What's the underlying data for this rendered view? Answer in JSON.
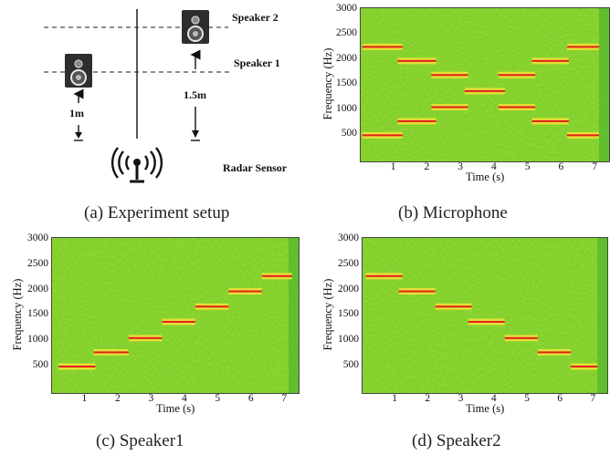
{
  "captions": {
    "a": "(a)  Experiment setup",
    "b": "(b)  Microphone",
    "c": "(c)  Speaker1",
    "d": "(d)  Speaker2"
  },
  "setup": {
    "speaker2_label": "Speaker 2",
    "speaker1_label": "Speaker 1",
    "dist1": "1m",
    "dist2": "1.5m",
    "radar_label": "Radar Sensor"
  },
  "axes": {
    "xlabel": "Time (s)",
    "ylabel": "Frequency (Hz)",
    "xticks": [
      "1",
      "2",
      "3",
      "4",
      "5",
      "6",
      "7"
    ],
    "yticks": [
      "500",
      "1000",
      "1500",
      "2000",
      "2500",
      "3000"
    ]
  },
  "colors": {
    "spectrogram_bg": "#7ccd2a",
    "tone": "#e0201a",
    "tone_glow": "#f6e23a"
  },
  "chart_data": [
    {
      "type": "heatmap",
      "panel": "Microphone",
      "xlabel": "Time (s)",
      "ylabel": "Frequency (Hz)",
      "xlim": [
        0,
        7.4
      ],
      "ylim": [
        0,
        3050
      ],
      "tones": [
        {
          "t0": 0.05,
          "t1": 1.25,
          "f": 520
        },
        {
          "t0": 0.05,
          "t1": 1.25,
          "f": 2280
        },
        {
          "t0": 1.1,
          "t1": 2.25,
          "f": 800
        },
        {
          "t0": 1.1,
          "t1": 2.25,
          "f": 2000
        },
        {
          "t0": 2.1,
          "t1": 3.2,
          "f": 1080
        },
        {
          "t0": 2.1,
          "t1": 3.2,
          "f": 1720
        },
        {
          "t0": 3.1,
          "t1": 4.3,
          "f": 1400
        },
        {
          "t0": 4.1,
          "t1": 5.2,
          "f": 1080
        },
        {
          "t0": 4.1,
          "t1": 5.2,
          "f": 1720
        },
        {
          "t0": 5.1,
          "t1": 6.2,
          "f": 800
        },
        {
          "t0": 5.1,
          "t1": 6.2,
          "f": 2000
        },
        {
          "t0": 6.15,
          "t1": 7.1,
          "f": 520
        },
        {
          "t0": 6.15,
          "t1": 7.1,
          "f": 2280
        }
      ]
    },
    {
      "type": "heatmap",
      "panel": "Speaker1",
      "xlabel": "Time (s)",
      "ylabel": "Frequency (Hz)",
      "xlim": [
        0,
        7.4
      ],
      "ylim": [
        0,
        3050
      ],
      "tones": [
        {
          "t0": 0.2,
          "t1": 1.3,
          "f": 520
        },
        {
          "t0": 1.25,
          "t1": 2.3,
          "f": 800
        },
        {
          "t0": 2.3,
          "t1": 3.3,
          "f": 1080
        },
        {
          "t0": 3.3,
          "t1": 4.3,
          "f": 1400
        },
        {
          "t0": 4.3,
          "t1": 5.3,
          "f": 1700
        },
        {
          "t0": 5.3,
          "t1": 6.3,
          "f": 2000
        },
        {
          "t0": 6.3,
          "t1": 7.2,
          "f": 2300
        }
      ]
    },
    {
      "type": "heatmap",
      "panel": "Speaker2",
      "xlabel": "Time (s)",
      "ylabel": "Frequency (Hz)",
      "xlim": [
        0,
        7.4
      ],
      "ylim": [
        0,
        3050
      ],
      "tones": [
        {
          "t0": 0.1,
          "t1": 1.2,
          "f": 2300
        },
        {
          "t0": 1.1,
          "t1": 2.2,
          "f": 2000
        },
        {
          "t0": 2.2,
          "t1": 3.3,
          "f": 1700
        },
        {
          "t0": 3.2,
          "t1": 4.3,
          "f": 1400
        },
        {
          "t0": 4.3,
          "t1": 5.3,
          "f": 1080
        },
        {
          "t0": 5.3,
          "t1": 6.3,
          "f": 800
        },
        {
          "t0": 6.3,
          "t1": 7.1,
          "f": 520
        }
      ]
    }
  ]
}
